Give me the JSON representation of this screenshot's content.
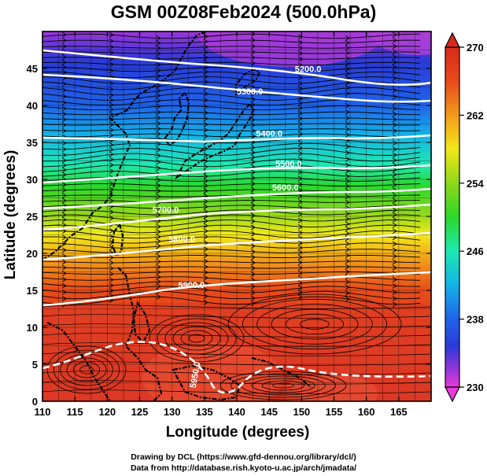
{
  "title": "GSM 00Z08Feb2024 (500.0hPa)",
  "axes": {
    "xlabel": "Longitude (degrees)",
    "ylabel": "Latitude  (degrees)",
    "x_range": [
      110,
      170
    ],
    "y_range": [
      0,
      50
    ],
    "x_ticks": [
      110,
      115,
      120,
      125,
      130,
      135,
      140,
      145,
      150,
      155,
      160,
      165
    ],
    "y_ticks": [
      0,
      5,
      10,
      15,
      20,
      25,
      30,
      35,
      40,
      45
    ]
  },
  "colorbar": {
    "min": 230,
    "max": 270,
    "tick_labels": [
      "270",
      "262",
      "254",
      "246",
      "238",
      "230"
    ],
    "tick_values": [
      270,
      262,
      254,
      246,
      238,
      230
    ],
    "colors": [
      "#e83ad8",
      "#9a35d8",
      "#2a3ad8",
      "#1f63e8",
      "#14b2e8",
      "#1ee8b2",
      "#2ad82a",
      "#8ed81a",
      "#f2e81a",
      "#f29a1a",
      "#e84a1a",
      "#d82a1a"
    ]
  },
  "contour_labels": [
    {
      "text": "5200.0",
      "lon": 151,
      "lat": 44.5
    },
    {
      "text": "5300.0",
      "lon": 142,
      "lat": 41.5
    },
    {
      "text": "5400.0",
      "lon": 145,
      "lat": 35.8
    },
    {
      "text": "5500.0",
      "lon": 148,
      "lat": 31.7
    },
    {
      "text": "5600.0",
      "lon": 147.5,
      "lat": 28.5
    },
    {
      "text": "5700.0",
      "lon": 129,
      "lat": 25.5
    },
    {
      "text": "5800.0",
      "lon": 131.5,
      "lat": 21.5
    },
    {
      "text": "5900.0",
      "lon": 133,
      "lat": 15.3
    },
    {
      "text": "5950.0",
      "lon": 134,
      "lat": 3.5
    }
  ],
  "credits": {
    "line1": "Drawing by DCL (https://www.gfd-dennou.org/library/dcl/)",
    "line2": "Data from http://database.rish.kyoto-u.ac.jp/arch/jmadata/"
  }
}
